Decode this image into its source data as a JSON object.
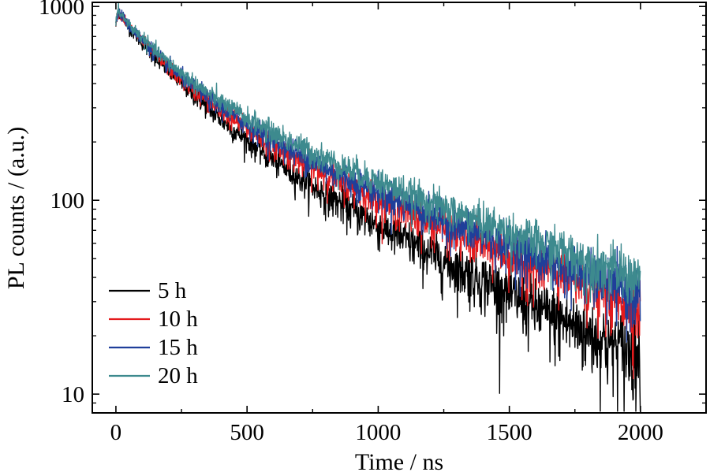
{
  "chart_data": {
    "type": "line",
    "title": "",
    "xlabel": "Time / ns",
    "ylabel": "PL counts / (a.u.)",
    "xlim": [
      -90,
      2250
    ],
    "ylim": [
      8,
      1050
    ],
    "y_scale": "log",
    "x_ticks": [
      0,
      500,
      1000,
      1500,
      2000
    ],
    "x_tick_labels": [
      "0",
      "500",
      "1000",
      "1500",
      "2000"
    ],
    "y_ticks": [
      10,
      100,
      1000
    ],
    "y_tick_labels": [
      "10",
      "100",
      "1000"
    ],
    "grid": false,
    "legend_position": "bottom-left",
    "noise": "high-frequency photon counting noise increasing at low counts",
    "series": [
      {
        "name": "5 h",
        "color": "#000000",
        "points": [
          [
            0,
            830
          ],
          [
            10,
            950
          ],
          [
            50,
            780
          ],
          [
            100,
            650
          ],
          [
            150,
            540
          ],
          [
            200,
            465
          ],
          [
            250,
            400
          ],
          [
            300,
            345
          ],
          [
            350,
            300
          ],
          [
            400,
            262
          ],
          [
            450,
            230
          ],
          [
            500,
            205
          ],
          [
            550,
            182
          ],
          [
            600,
            162
          ],
          [
            700,
            131
          ],
          [
            800,
            107
          ],
          [
            900,
            89
          ],
          [
            1000,
            74
          ],
          [
            1100,
            63
          ],
          [
            1200,
            53
          ],
          [
            1300,
            45
          ],
          [
            1400,
            39
          ],
          [
            1500,
            33
          ],
          [
            1600,
            28
          ],
          [
            1700,
            24
          ],
          [
            1800,
            21
          ],
          [
            1900,
            18
          ],
          [
            2000,
            16
          ]
        ]
      },
      {
        "name": "10 h",
        "color": "#e41a1c",
        "points": [
          [
            0,
            830
          ],
          [
            10,
            950
          ],
          [
            50,
            790
          ],
          [
            100,
            665
          ],
          [
            150,
            560
          ],
          [
            200,
            485
          ],
          [
            250,
            420
          ],
          [
            300,
            368
          ],
          [
            350,
            325
          ],
          [
            400,
            290
          ],
          [
            450,
            260
          ],
          [
            500,
            235
          ],
          [
            550,
            212
          ],
          [
            600,
            192
          ],
          [
            700,
            160
          ],
          [
            800,
            136
          ],
          [
            900,
            117
          ],
          [
            1000,
            101
          ],
          [
            1100,
            88
          ],
          [
            1200,
            77
          ],
          [
            1300,
            67
          ],
          [
            1400,
            59
          ],
          [
            1500,
            52
          ],
          [
            1600,
            46
          ],
          [
            1700,
            41
          ],
          [
            1800,
            36
          ],
          [
            1900,
            32
          ],
          [
            2000,
            28
          ]
        ]
      },
      {
        "name": "15 h",
        "color": "#1f3f9a",
        "points": [
          [
            0,
            830
          ],
          [
            10,
            950
          ],
          [
            50,
            795
          ],
          [
            100,
            675
          ],
          [
            150,
            572
          ],
          [
            200,
            498
          ],
          [
            250,
            434
          ],
          [
            300,
            382
          ],
          [
            350,
            338
          ],
          [
            400,
            303
          ],
          [
            450,
            273
          ],
          [
            500,
            247
          ],
          [
            550,
            224
          ],
          [
            600,
            205
          ],
          [
            700,
            172
          ],
          [
            800,
            147
          ],
          [
            900,
            127
          ],
          [
            1000,
            110
          ],
          [
            1100,
            96
          ],
          [
            1200,
            84
          ],
          [
            1300,
            74
          ],
          [
            1400,
            66
          ],
          [
            1500,
            58
          ],
          [
            1600,
            52
          ],
          [
            1700,
            46
          ],
          [
            1800,
            41
          ],
          [
            1900,
            36
          ],
          [
            2000,
            32
          ]
        ]
      },
      {
        "name": "20 h",
        "color": "#3d8a8e",
        "points": [
          [
            0,
            830
          ],
          [
            10,
            950
          ],
          [
            50,
            805
          ],
          [
            100,
            690
          ],
          [
            150,
            590
          ],
          [
            200,
            516
          ],
          [
            250,
            454
          ],
          [
            300,
            402
          ],
          [
            350,
            358
          ],
          [
            400,
            322
          ],
          [
            450,
            292
          ],
          [
            500,
            266
          ],
          [
            550,
            243
          ],
          [
            600,
            223
          ],
          [
            700,
            190
          ],
          [
            800,
            164
          ],
          [
            900,
            143
          ],
          [
            1000,
            125
          ],
          [
            1100,
            110
          ],
          [
            1200,
            97
          ],
          [
            1300,
            86
          ],
          [
            1400,
            77
          ],
          [
            1500,
            69
          ],
          [
            1600,
            61
          ],
          [
            1700,
            55
          ],
          [
            1800,
            49
          ],
          [
            1900,
            44
          ],
          [
            2000,
            39
          ]
        ]
      }
    ]
  }
}
